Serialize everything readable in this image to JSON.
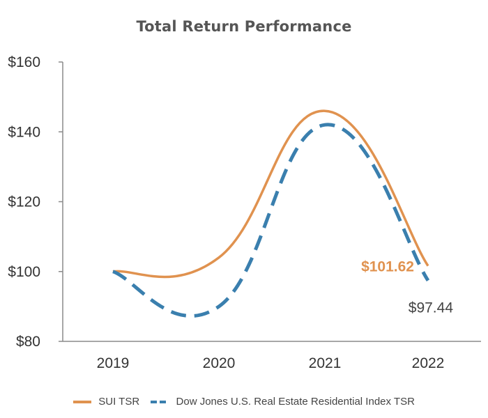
{
  "chart_data": {
    "type": "line",
    "title": "Total Return Performance",
    "categories": [
      "2019",
      "2020",
      "2021",
      "2022"
    ],
    "ylim": [
      80,
      160
    ],
    "yticks": [
      80,
      100,
      120,
      140,
      160
    ],
    "ytick_labels": [
      "$80",
      "$100",
      "$120",
      "$140",
      "$160"
    ],
    "series": [
      {
        "name": "SUI TSR",
        "values": [
          100,
          104,
          146,
          101.62
        ],
        "color": "#e0924f",
        "style": "solid",
        "end_label": "$101.62"
      },
      {
        "name": "Dow Jones U.S. Real Estate Residential Index TSR",
        "values": [
          100,
          90,
          142,
          97.44
        ],
        "color": "#3a7fae",
        "style": "dashed",
        "end_label": "$97.44"
      }
    ],
    "legend_position": "bottom"
  },
  "legend": {
    "items": [
      "SUI TSR",
      "Dow Jones U.S. Real Estate Residential Index TSR"
    ]
  }
}
